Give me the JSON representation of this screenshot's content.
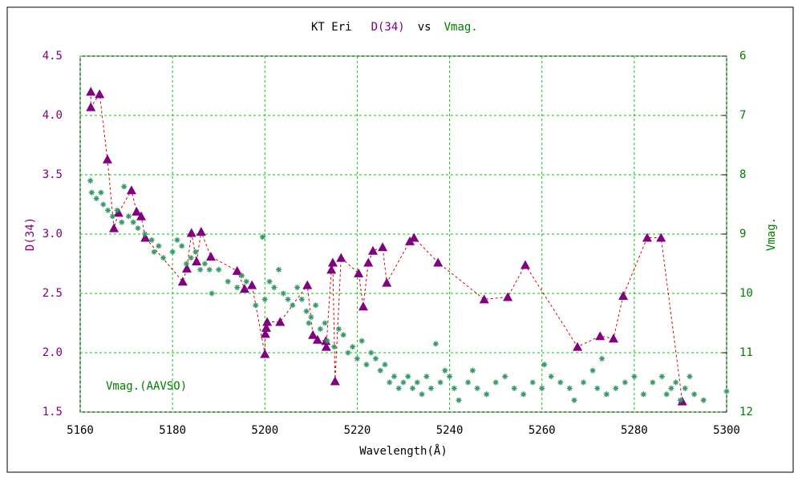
{
  "chart_data": {
    "type": "scatter",
    "title": [
      "KT Eri",
      "D(34)",
      "vs",
      "Vmag."
    ],
    "title_colors": [
      "#000000",
      "#800080",
      "#000000",
      "#008000"
    ],
    "x_label": "Wavelength(Å)",
    "y_label": "D(34)",
    "y2_label": "Vmag.",
    "xlim": [
      5160,
      5300
    ],
    "xticks": [
      5160,
      5180,
      5200,
      5220,
      5240,
      5260,
      5280,
      5300
    ],
    "ylim": [
      1.5,
      4.5
    ],
    "yticks": [
      1.5,
      {
        "value": 2,
        "label": "2.0"
      },
      2.5,
      {
        "value": 3,
        "label": "3.0"
      },
      3.5,
      {
        "value": 4,
        "label": "4.0"
      },
      4.5
    ],
    "y2lim": [
      12,
      6
    ],
    "y2ticks": [
      6,
      7,
      8,
      9,
      10,
      11,
      12
    ],
    "grid": true,
    "grid_color": "#00cc00",
    "series": [
      {
        "name": "D(34)",
        "color": "#800080",
        "marker": "triangle",
        "line_color": "#dd0000",
        "x": [
          5162.3,
          5162.3,
          5164.2,
          5165.9,
          5167.3,
          5168.3,
          5171.1,
          5172.2,
          5173.2,
          5174.1,
          5182.2,
          5183.1,
          5184.1,
          5185.2,
          5186.2,
          5188.3,
          5194.0,
          5195.6,
          5197.2,
          5200.0,
          5200.1,
          5200.3,
          5200.5,
          5203.3,
          5209.2,
          5210.4,
          5211.4,
          5213.2,
          5213.3,
          5214.4,
          5214.7,
          5215.2,
          5216.5,
          5220.3,
          5221.3,
          5222.4,
          5223.4,
          5225.5,
          5226.4,
          5231.4,
          5232.3,
          5237.5,
          5247.5,
          5252.6,
          5256.4,
          5267.7,
          5272.6,
          5275.5,
          5277.6,
          5282.8,
          5285.8,
          5290.4
        ],
        "values": [
          4.2,
          4.07,
          4.18,
          3.63,
          3.05,
          3.18,
          3.37,
          3.19,
          3.15,
          2.97,
          2.6,
          2.71,
          3.01,
          2.77,
          3.02,
          2.81,
          2.69,
          2.54,
          2.57,
          1.99,
          2.16,
          2.21,
          2.26,
          2.26,
          2.57,
          2.15,
          2.11,
          2.1,
          2.05,
          2.7,
          2.76,
          1.76,
          2.8,
          2.67,
          2.39,
          2.76,
          2.86,
          2.89,
          2.59,
          2.94,
          2.97,
          2.76,
          2.45,
          2.47,
          2.74,
          2.05,
          2.14,
          2.12,
          2.48,
          2.97,
          2.97,
          1.59
        ]
      },
      {
        "name": "Vmag.(AAVSO)",
        "color": "#339966",
        "marker": "asterisk",
        "axis": "y2",
        "x": [
          5162.2,
          5162.5,
          5163.5,
          5164.5,
          5165,
          5166,
          5167,
          5168,
          5169,
          5169.5,
          5170.5,
          5171.5,
          5172.5,
          5174,
          5175.5,
          5176,
          5177,
          5178,
          5180,
          5181,
          5182,
          5183,
          5184,
          5185,
          5186,
          5187,
          5188,
          5188.5,
          5190,
          5192,
          5194,
          5195,
          5196,
          5198,
          5199.5,
          5200,
          5201,
          5202,
          5203,
          5204,
          5205,
          5206,
          5207,
          5208,
          5209,
          5209.5,
          5210,
          5211,
          5212,
          5213,
          5213.5,
          5215,
          5216,
          5217,
          5218,
          5219,
          5220,
          5221,
          5222,
          5223,
          5224,
          5225,
          5226,
          5227,
          5228,
          5229,
          5230,
          5231,
          5232,
          5233,
          5234,
          5235,
          5236,
          5237,
          5238,
          5239,
          5240,
          5241,
          5242,
          5244,
          5245,
          5246,
          5248,
          5250,
          5252,
          5254,
          5256,
          5258,
          5260,
          5260.5,
          5262,
          5264,
          5266,
          5267,
          5269,
          5271,
          5272,
          5273,
          5274,
          5276,
          5278,
          5280,
          5282,
          5284,
          5286,
          5287,
          5288,
          5289,
          5290,
          5291,
          5292,
          5293,
          5295,
          5300
        ],
        "values": [
          8.1,
          8.3,
          8.4,
          8.3,
          8.5,
          8.6,
          8.7,
          8.6,
          8.8,
          8.2,
          8.7,
          8.8,
          8.9,
          9.0,
          9.1,
          9.3,
          9.2,
          9.4,
          9.3,
          9.1,
          9.2,
          9.5,
          9.4,
          9.3,
          9.6,
          9.5,
          9.6,
          10.0,
          9.6,
          9.8,
          9.9,
          9.7,
          9.8,
          10.2,
          9.05,
          10.1,
          9.8,
          9.9,
          9.6,
          10.0,
          10.1,
          10.2,
          9.9,
          10.1,
          10.3,
          10.5,
          10.4,
          10.2,
          10.6,
          10.5,
          10.8,
          10.9,
          10.6,
          10.7,
          11.0,
          10.9,
          11.1,
          10.8,
          11.2,
          11.0,
          11.1,
          11.3,
          11.2,
          11.5,
          11.4,
          11.6,
          11.5,
          11.4,
          11.6,
          11.5,
          11.7,
          11.4,
          11.6,
          10.85,
          11.5,
          11.3,
          11.4,
          11.6,
          11.8,
          11.5,
          11.3,
          11.6,
          11.7,
          11.5,
          11.4,
          11.6,
          11.7,
          11.5,
          11.6,
          11.2,
          11.4,
          11.5,
          11.6,
          11.8,
          11.5,
          11.3,
          11.6,
          11.1,
          11.7,
          11.6,
          11.5,
          11.4,
          11.7,
          11.5,
          11.4,
          11.7,
          11.6,
          11.5,
          11.8,
          11.6,
          11.4,
          11.7,
          11.8,
          11.65
        ]
      }
    ]
  }
}
